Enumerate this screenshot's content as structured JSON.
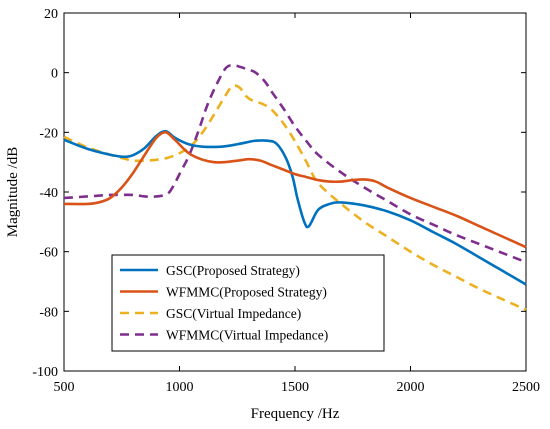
{
  "chart_data": {
    "type": "line",
    "xlabel": "Frequency /Hz",
    "ylabel": "Magnitude /dB",
    "xlim": [
      500,
      2500
    ],
    "ylim": [
      -100,
      20
    ],
    "xticks": [
      500,
      1000,
      1500,
      2000,
      2500
    ],
    "yticks": [
      20,
      0,
      -20,
      -40,
      -60,
      -80,
      -100
    ],
    "grid": false,
    "legend_position": "bottom-left",
    "series": [
      {
        "name": "GSC(Proposed Strategy)",
        "color": "#0072BD",
        "style": "solid",
        "x": [
          500,
          600,
          700,
          760,
          800,
          850,
          900,
          940,
          980,
          1040,
          1100,
          1180,
          1250,
          1300,
          1330,
          1380,
          1420,
          1460,
          1490,
          1510,
          1540,
          1560,
          1600,
          1650,
          1700,
          1800,
          1900,
          2000,
          2100,
          2200,
          2300,
          2400,
          2500
        ],
        "y": [
          -22.5,
          -25.5,
          -27.5,
          -28.2,
          -27.6,
          -25.2,
          -21.2,
          -19.6,
          -21.8,
          -24.0,
          -24.8,
          -24.8,
          -24.0,
          -23.2,
          -22.8,
          -22.8,
          -23.8,
          -28.5,
          -35.0,
          -42.0,
          -50.0,
          -51.5,
          -46.0,
          -44.0,
          -43.5,
          -44.5,
          -46.5,
          -49.5,
          -53.5,
          -57.5,
          -62.0,
          -66.5,
          -71.0
        ]
      },
      {
        "name": "WFMMC(Proposed Strategy)",
        "color": "#D95319",
        "style": "solid",
        "x": [
          500,
          600,
          650,
          700,
          750,
          800,
          850,
          900,
          940,
          980,
          1050,
          1150,
          1250,
          1300,
          1350,
          1400,
          1450,
          1500,
          1550,
          1600,
          1650,
          1700,
          1750,
          1800,
          1850,
          1900,
          2000,
          2100,
          2200,
          2300,
          2400,
          2500
        ],
        "y": [
          -44.0,
          -44.0,
          -43.5,
          -42.0,
          -38.5,
          -33.5,
          -27.5,
          -21.8,
          -20.0,
          -22.5,
          -27.5,
          -30.0,
          -29.5,
          -29.0,
          -29.5,
          -31.0,
          -32.5,
          -34.0,
          -35.0,
          -36.0,
          -36.5,
          -36.5,
          -36.0,
          -35.8,
          -36.5,
          -38.5,
          -42.0,
          -45.0,
          -48.0,
          -51.5,
          -55.0,
          -58.5
        ]
      },
      {
        "name": "GSC(Virtual Impedance)",
        "color": "#EDB120",
        "style": "dashed",
        "x": [
          500,
          600,
          700,
          760,
          800,
          850,
          900,
          950,
          1000,
          1050,
          1100,
          1150,
          1200,
          1230,
          1260,
          1290,
          1320,
          1360,
          1400,
          1450,
          1500,
          1550,
          1600,
          1700,
          1800,
          1900,
          2000,
          2100,
          2200,
          2300,
          2400,
          2500
        ],
        "y": [
          -21.5,
          -25.0,
          -27.5,
          -28.8,
          -29.5,
          -29.5,
          -29.2,
          -28.5,
          -27.0,
          -24.5,
          -20.0,
          -14.0,
          -7.5,
          -4.5,
          -5.0,
          -8.0,
          -9.5,
          -10.5,
          -12.5,
          -17.0,
          -23.0,
          -30.0,
          -37.0,
          -44.0,
          -50.0,
          -55.0,
          -60.0,
          -64.5,
          -68.5,
          -72.5,
          -76.0,
          -79.5
        ]
      },
      {
        "name": "WFMMC(Virtual Impedance)",
        "color": "#7E2F8E",
        "style": "dashed",
        "x": [
          500,
          600,
          700,
          800,
          850,
          900,
          950,
          980,
          1000,
          1040,
          1080,
          1120,
          1160,
          1200,
          1230,
          1260,
          1280,
          1300,
          1330,
          1370,
          1400,
          1450,
          1500,
          1550,
          1600,
          1700,
          1800,
          1900,
          2000,
          2100,
          2200,
          2300,
          2400,
          2500
        ],
        "y": [
          -42.0,
          -41.5,
          -41.0,
          -41.0,
          -41.5,
          -41.5,
          -40.5,
          -37.0,
          -34.0,
          -28.0,
          -20.0,
          -11.0,
          -4.0,
          1.5,
          2.5,
          2.0,
          1.5,
          1.0,
          0.0,
          -3.0,
          -6.5,
          -12.0,
          -18.0,
          -23.0,
          -27.5,
          -33.5,
          -38.5,
          -43.0,
          -47.5,
          -51.0,
          -54.5,
          -57.5,
          -60.5,
          -63.5
        ]
      }
    ]
  }
}
